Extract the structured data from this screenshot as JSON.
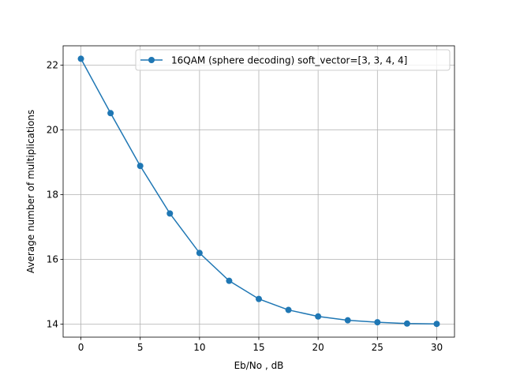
{
  "chart_data": {
    "type": "line",
    "title": "",
    "xlabel": "Eb/No , dB",
    "ylabel": "Average number of multiplications",
    "xlim": [
      -1.5,
      31.5
    ],
    "ylim": [
      13.6,
      22.6
    ],
    "xticks": [
      0,
      5,
      10,
      15,
      20,
      25,
      30
    ],
    "yticks": [
      14,
      16,
      18,
      20,
      22
    ],
    "grid": true,
    "legend_position": "top-right",
    "series": [
      {
        "name": "16QAM (sphere decoding) soft_vector=[3, 3, 4, 4]",
        "color": "#1f77b4",
        "marker": "circle",
        "x": [
          0,
          2.5,
          5,
          7.5,
          10,
          12.5,
          15,
          17.5,
          20,
          22.5,
          25,
          27.5,
          30
        ],
        "y": [
          22.2,
          20.52,
          18.89,
          17.42,
          16.2,
          15.34,
          14.78,
          14.44,
          14.24,
          14.12,
          14.06,
          14.02,
          14.01
        ]
      }
    ]
  }
}
